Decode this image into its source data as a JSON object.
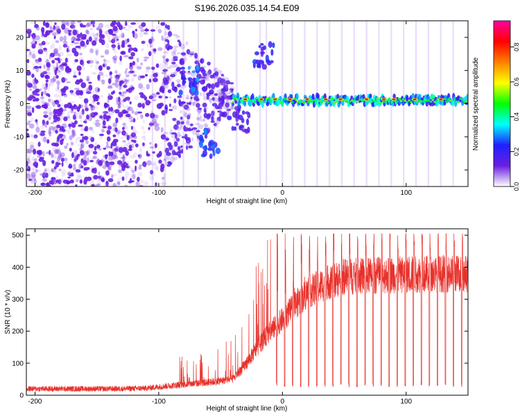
{
  "title": "S196.2026.035.14.54.E09",
  "colors": {
    "line": "#e8302a",
    "axis": "#000000",
    "spec_base": "#6a1fe0"
  },
  "chart_data": [
    {
      "type": "heatmap",
      "name": "spectrogram",
      "xlabel": "Height of straight line (km)",
      "ylabel": "Frequency (Hz)",
      "xlim": [
        -207,
        150
      ],
      "ylim": [
        -25,
        25
      ],
      "xticks": [
        -200,
        -100,
        0,
        100
      ],
      "yticks": [
        -20,
        -10,
        0,
        10,
        20
      ],
      "colorbar": {
        "label": "Normalized spectral amplitude",
        "range": [
          0,
          0.95
        ],
        "ticks": [
          "0.0",
          "0.2",
          "0.4",
          "0.6",
          "0.8"
        ],
        "tick_values": [
          0.0,
          0.2,
          0.4,
          0.6,
          0.8
        ],
        "colormap": [
          "#ffffff",
          "#6a1fe0",
          "#2020ff",
          "#00ffff",
          "#00ff00",
          "#ffff00",
          "#ff8000",
          "#ff0000",
          "#ff00a0"
        ]
      },
      "bands": [
        {
          "x_start": -207,
          "x_end": -95,
          "f_center": 0,
          "f_width": 50,
          "amplitude": 0.12,
          "density": "dense"
        },
        {
          "x_start": -95,
          "x_end": -40,
          "f_center": 2,
          "f_width": 20,
          "amplitude": 0.2,
          "density": "medium"
        },
        {
          "x_start": -40,
          "x_end": 150,
          "f_center": 1,
          "f_width": 3,
          "amplitude": 0.45,
          "density": "line"
        }
      ],
      "features": [
        {
          "x": -75,
          "f": 7,
          "amplitude": 0.3
        },
        {
          "x": -60,
          "f": -12,
          "amplitude": 0.3
        },
        {
          "x": -35,
          "f": -5,
          "amplitude": 0.22
        },
        {
          "x": -15,
          "f": 15,
          "amplitude": 0.25
        }
      ],
      "peaks_x": [
        -30,
        -17,
        -6,
        6,
        20,
        35,
        47,
        68,
        82,
        90,
        107,
        128
      ]
    },
    {
      "type": "line",
      "name": "snr",
      "xlabel": "Height of straight line (km)",
      "ylabel": "SNR (10 * v/v)",
      "xlim": [
        -207,
        150
      ],
      "ylim": [
        0,
        520
      ],
      "xticks": [
        -200,
        -100,
        0,
        100
      ],
      "yticks": [
        0,
        100,
        200,
        300,
        400,
        500
      ],
      "baseline_x": [
        -207,
        -130,
        -110,
        -90,
        -60,
        -40,
        -30,
        -20,
        -10,
        0,
        10,
        20,
        35,
        50,
        80,
        110,
        150
      ],
      "baseline_y": [
        20,
        20,
        22,
        30,
        40,
        50,
        95,
        150,
        200,
        235,
        280,
        320,
        350,
        370,
        375,
        378,
        380
      ],
      "spike_min_x": -85,
      "spike_max_x": -45,
      "dip_min_x": -5,
      "dip_spacing": 6.5,
      "dip_level": 25,
      "max_spike": 505,
      "notable_peak": {
        "x": -12,
        "y": 485
      }
    }
  ]
}
